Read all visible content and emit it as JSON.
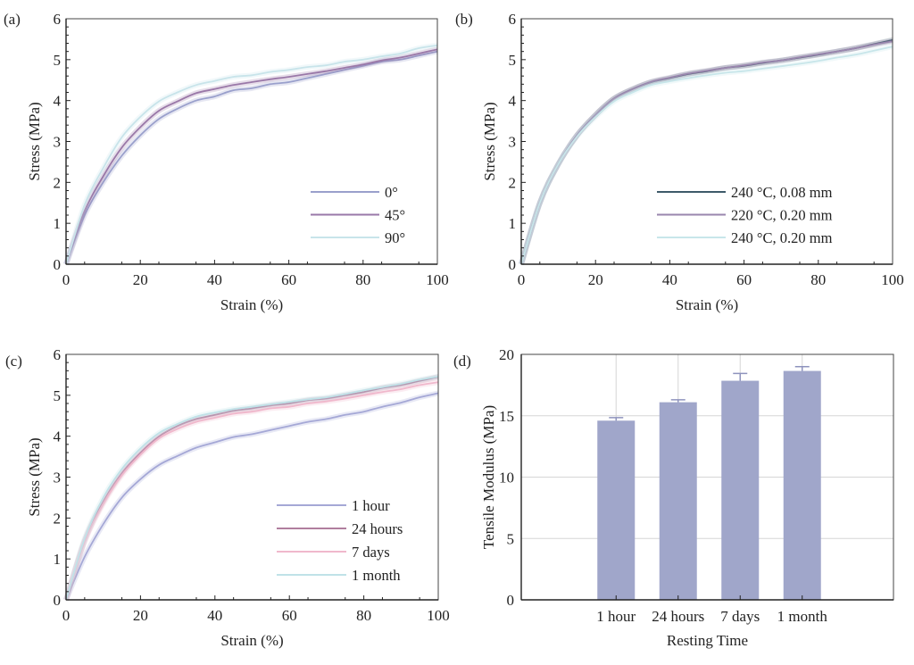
{
  "chart_data": [
    {
      "panel": "(a)",
      "type": "line",
      "title": "",
      "xlabel": "Strain (%)",
      "ylabel": "Stress (MPa)",
      "xlim": [
        0,
        100
      ],
      "ylim": [
        0,
        6
      ],
      "xticks": [
        0,
        20,
        40,
        60,
        80,
        100
      ],
      "yticks": [
        0,
        1,
        2,
        3,
        4,
        5,
        6
      ],
      "grid": false,
      "legend_position": "bottom-right",
      "x": [
        0,
        5,
        10,
        15,
        20,
        25,
        30,
        35,
        40,
        45,
        50,
        55,
        60,
        65,
        70,
        75,
        80,
        85,
        90,
        95,
        100
      ],
      "series": [
        {
          "name": "0°",
          "color": "#9aa0cc",
          "values": [
            0,
            1.2,
            2.0,
            2.65,
            3.15,
            3.55,
            3.8,
            4.0,
            4.1,
            4.25,
            4.3,
            4.4,
            4.45,
            4.55,
            4.65,
            4.75,
            4.85,
            4.95,
            5.0,
            5.1,
            5.2
          ]
        },
        {
          "name": "45°",
          "color": "#9a78a8",
          "values": [
            0,
            1.3,
            2.15,
            2.85,
            3.35,
            3.75,
            3.98,
            4.18,
            4.28,
            4.38,
            4.45,
            4.52,
            4.58,
            4.65,
            4.72,
            4.8,
            4.88,
            4.98,
            5.05,
            5.15,
            5.25
          ]
        },
        {
          "name": "90°",
          "color": "#c8e4ea",
          "values": [
            0,
            1.45,
            2.35,
            3.1,
            3.6,
            3.98,
            4.2,
            4.38,
            4.48,
            4.58,
            4.62,
            4.7,
            4.75,
            4.82,
            4.86,
            4.95,
            5.0,
            5.08,
            5.15,
            5.28,
            5.35
          ]
        }
      ]
    },
    {
      "panel": "(b)",
      "type": "line",
      "title": "",
      "xlabel": "Strain (%)",
      "ylabel": "Stress (MPa)",
      "xlim": [
        0,
        100
      ],
      "ylim": [
        0,
        6
      ],
      "xticks": [
        0,
        20,
        40,
        60,
        80,
        100
      ],
      "yticks": [
        0,
        1,
        2,
        3,
        4,
        5,
        6
      ],
      "grid": false,
      "legend_position": "bottom-right",
      "x": [
        0,
        5,
        10,
        15,
        20,
        25,
        30,
        35,
        40,
        45,
        50,
        55,
        60,
        65,
        70,
        75,
        80,
        85,
        90,
        95,
        100
      ],
      "series": [
        {
          "name": "240 °C, 0.08 mm",
          "color": "#3e5a6a",
          "values": [
            0,
            1.5,
            2.45,
            3.15,
            3.65,
            4.05,
            4.28,
            4.45,
            4.55,
            4.65,
            4.72,
            4.8,
            4.85,
            4.92,
            4.98,
            5.05,
            5.12,
            5.2,
            5.28,
            5.38,
            5.48
          ]
        },
        {
          "name": "220 °C, 0.20 mm",
          "color": "#9a86ae",
          "values": [
            0,
            1.5,
            2.45,
            3.15,
            3.65,
            4.05,
            4.28,
            4.46,
            4.56,
            4.66,
            4.73,
            4.8,
            4.86,
            4.93,
            4.98,
            5.06,
            5.13,
            5.2,
            5.28,
            5.37,
            5.45
          ]
        },
        {
          "name": "240 °C, 0.20 mm",
          "color": "#c8e6ea",
          "values": [
            0,
            1.5,
            2.45,
            3.12,
            3.6,
            3.98,
            4.2,
            4.38,
            4.47,
            4.55,
            4.62,
            4.68,
            4.72,
            4.78,
            4.84,
            4.9,
            4.97,
            5.05,
            5.12,
            5.22,
            5.32
          ]
        }
      ]
    },
    {
      "panel": "(c)",
      "type": "line",
      "title": "",
      "xlabel": "Strain (%)",
      "ylabel": "Stress (MPa)",
      "xlim": [
        0,
        100
      ],
      "ylim": [
        0,
        6
      ],
      "xticks": [
        0,
        20,
        40,
        60,
        80,
        100
      ],
      "yticks": [
        0,
        1,
        2,
        3,
        4,
        5,
        6
      ],
      "grid": false,
      "legend_position": "bottom-right",
      "x": [
        0,
        5,
        10,
        15,
        20,
        25,
        30,
        35,
        40,
        45,
        50,
        55,
        60,
        65,
        70,
        75,
        80,
        85,
        90,
        95,
        100
      ],
      "series": [
        {
          "name": "1 hour",
          "color": "#a5a8d6",
          "values": [
            0,
            1.05,
            1.85,
            2.5,
            2.95,
            3.3,
            3.52,
            3.72,
            3.85,
            3.98,
            4.05,
            4.15,
            4.25,
            4.35,
            4.42,
            4.52,
            4.6,
            4.72,
            4.82,
            4.95,
            5.05
          ]
        },
        {
          "name": "24 hours",
          "color": "#b07e9e",
          "values": [
            0,
            1.45,
            2.4,
            3.1,
            3.6,
            4.0,
            4.25,
            4.42,
            4.52,
            4.62,
            4.68,
            4.75,
            4.8,
            4.88,
            4.92,
            5.0,
            5.08,
            5.18,
            5.25,
            5.35,
            5.45
          ]
        },
        {
          "name": "7 days",
          "color": "#f0b8cc",
          "values": [
            0,
            1.42,
            2.35,
            3.05,
            3.55,
            3.95,
            4.18,
            4.35,
            4.45,
            4.55,
            4.6,
            4.68,
            4.72,
            4.8,
            4.85,
            4.92,
            5.0,
            5.08,
            5.15,
            5.25,
            5.32
          ]
        },
        {
          "name": "1 month",
          "color": "#c0e2e8",
          "values": [
            0,
            1.5,
            2.5,
            3.2,
            3.7,
            4.08,
            4.3,
            4.48,
            4.58,
            4.66,
            4.72,
            4.78,
            4.84,
            4.9,
            4.95,
            5.03,
            5.12,
            5.2,
            5.28,
            5.38,
            5.46
          ]
        }
      ]
    },
    {
      "panel": "(d)",
      "type": "bar",
      "title": "",
      "xlabel": "Resting Time",
      "ylabel": "Tensile Modulus (MPa)",
      "ylim": [
        0,
        20
      ],
      "yticks": [
        0,
        5,
        10,
        15,
        20
      ],
      "grid": true,
      "categories": [
        "1 hour",
        "24 hours",
        "7 days",
        "1 month"
      ],
      "values": [
        14.6,
        16.1,
        17.85,
        18.65
      ],
      "errors": [
        0.25,
        0.2,
        0.6,
        0.35
      ],
      "color": "#a0a6ca"
    }
  ]
}
